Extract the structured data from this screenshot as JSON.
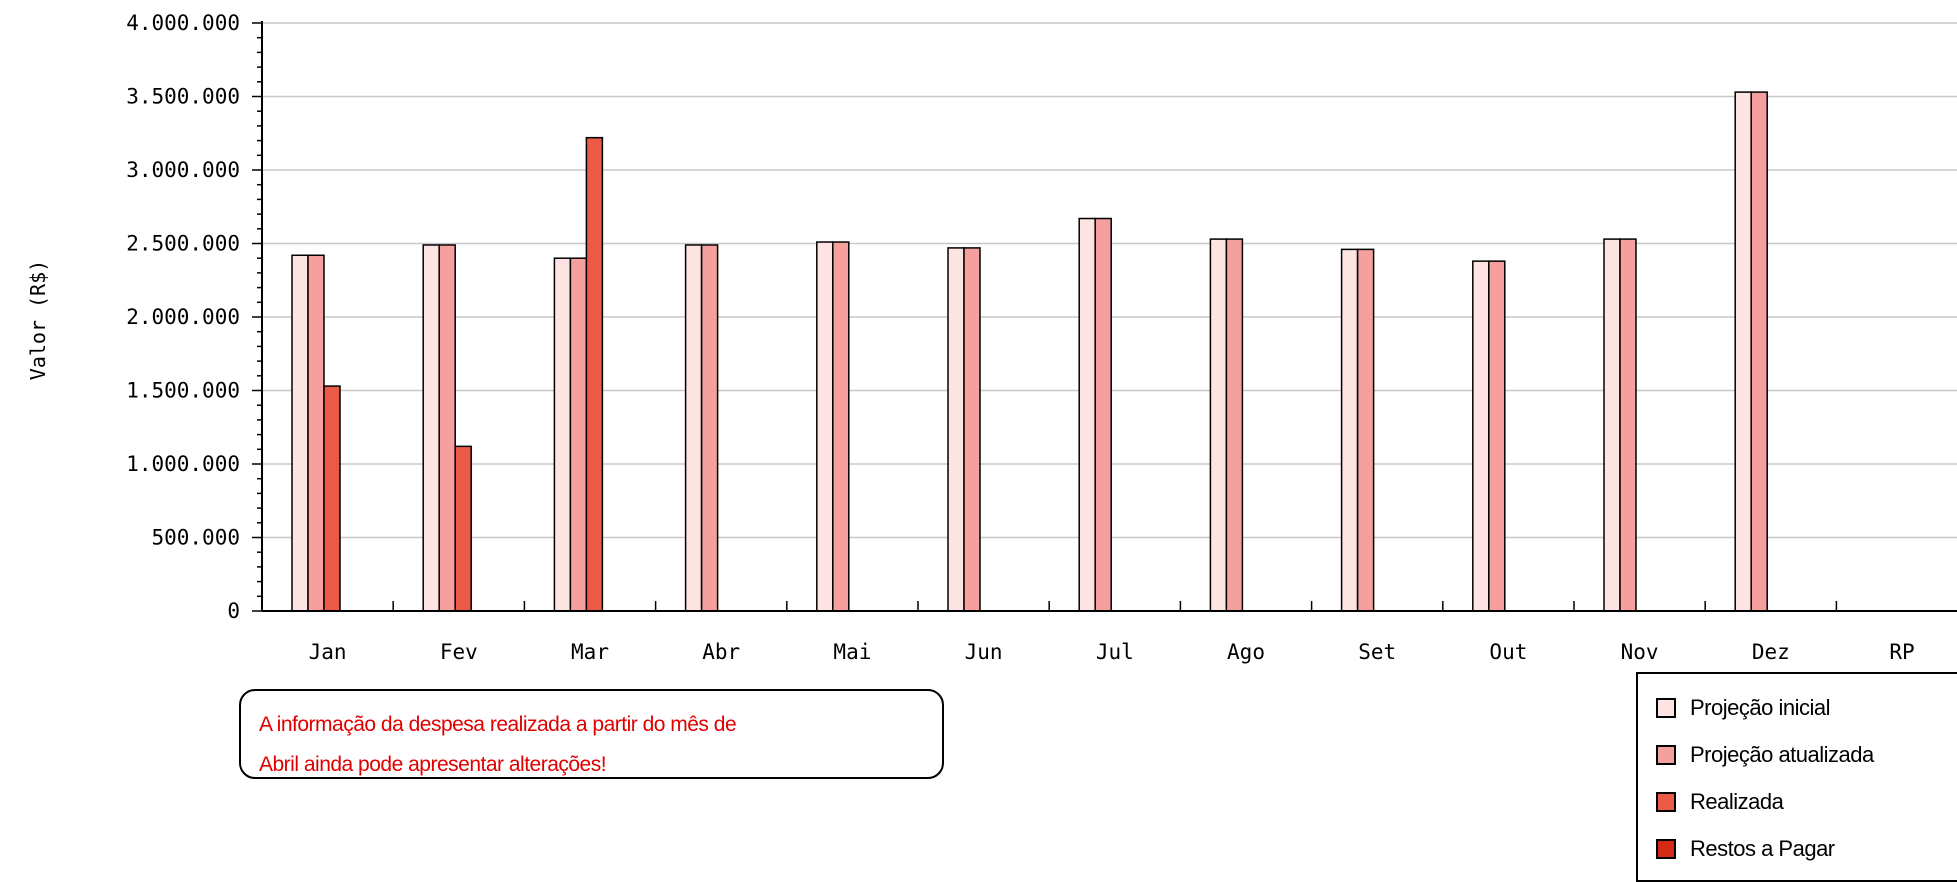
{
  "chart_data": {
    "type": "bar",
    "ylabel": "Valor (R$)",
    "ylim": [
      0,
      4000000
    ],
    "yticks": [
      {
        "value": 0,
        "label": "0"
      },
      {
        "value": 500000,
        "label": "500.000"
      },
      {
        "value": 1000000,
        "label": "1.000.000"
      },
      {
        "value": 1500000,
        "label": "1.500.000"
      },
      {
        "value": 2000000,
        "label": "2.000.000"
      },
      {
        "value": 2500000,
        "label": "2.500.000"
      },
      {
        "value": 3000000,
        "label": "3.000.000"
      },
      {
        "value": 3500000,
        "label": "3.500.000"
      },
      {
        "value": 4000000,
        "label": "4.000.000"
      }
    ],
    "categories": [
      "Jan",
      "Fev",
      "Mar",
      "Abr",
      "Mai",
      "Jun",
      "Jul",
      "Ago",
      "Set",
      "Out",
      "Nov",
      "Dez",
      "RP"
    ],
    "grid": true,
    "legend_position": "bottom-right",
    "series": [
      {
        "name": "Projeção inicial",
        "color": "#fde3e1",
        "values": [
          2420000,
          2490000,
          2400000,
          2490000,
          2510000,
          2470000,
          2670000,
          2530000,
          2460000,
          2380000,
          2530000,
          3530000,
          null
        ]
      },
      {
        "name": "Projeção atualizada",
        "color": "#f5a09c",
        "values": [
          2420000,
          2490000,
          2400000,
          2490000,
          2510000,
          2470000,
          2670000,
          2530000,
          2460000,
          2380000,
          2530000,
          3530000,
          null
        ]
      },
      {
        "name": "Realizada",
        "color": "#ec5a47",
        "values": [
          1530000,
          1120000,
          3220000,
          null,
          null,
          null,
          null,
          null,
          null,
          null,
          null,
          null,
          null
        ]
      },
      {
        "name": "Restos a Pagar",
        "color": "#d42a15",
        "values": [
          null,
          null,
          null,
          null,
          null,
          null,
          null,
          null,
          null,
          null,
          null,
          null,
          null
        ]
      }
    ]
  },
  "note": {
    "line1": "A informação da despesa realizada a partir do mês de",
    "line2": "Abril ainda pode apresentar alterações!"
  }
}
